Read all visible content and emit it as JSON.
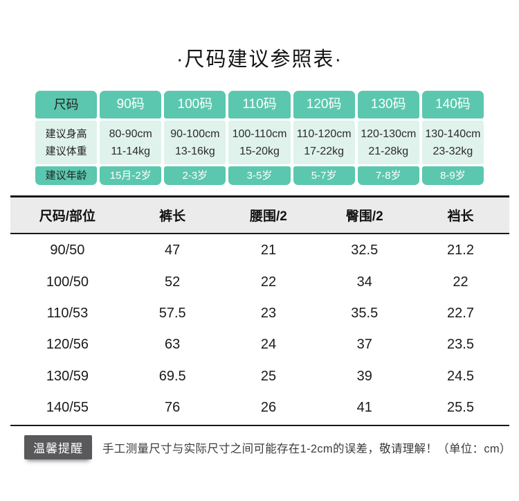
{
  "page": {
    "title": "·尺码建议参照表·"
  },
  "colors": {
    "teal": "#5bc7ae",
    "mint": "#dff2ec",
    "header_gray": "#ebebeb",
    "badge_gray": "#59595b"
  },
  "size_table": {
    "corner_label": "尺码",
    "row_labels": {
      "height": "建议身高",
      "weight": "建议体重",
      "age": "建议年龄"
    },
    "columns": [
      {
        "size": "90码",
        "height": "80-90cm",
        "weight": "11-14kg",
        "age": "15月-2岁"
      },
      {
        "size": "100码",
        "height": "90-100cm",
        "weight": "13-16kg",
        "age": "2-3岁"
      },
      {
        "size": "110码",
        "height": "100-110cm",
        "weight": "15-20kg",
        "age": "3-5岁"
      },
      {
        "size": "120码",
        "height": "110-120cm",
        "weight": "17-22kg",
        "age": "5-7岁"
      },
      {
        "size": "130码",
        "height": "120-130cm",
        "weight": "21-28kg",
        "age": "7-8岁"
      },
      {
        "size": "140码",
        "height": "130-140cm",
        "weight": "23-32kg",
        "age": "8-9岁"
      }
    ]
  },
  "measure_table": {
    "headers": [
      "尺码/部位",
      "裤长",
      "腰围/2",
      "臀围/2",
      "裆长"
    ],
    "rows": [
      [
        "90/50",
        "47",
        "21",
        "32.5",
        "21.2"
      ],
      [
        "100/50",
        "52",
        "22",
        "34",
        "22"
      ],
      [
        "110/53",
        "57.5",
        "23",
        "35.5",
        "22.7"
      ],
      [
        "120/56",
        "63",
        "24",
        "37",
        "23.5"
      ],
      [
        "130/59",
        "69.5",
        "25",
        "39",
        "24.5"
      ],
      [
        "140/55",
        "76",
        "26",
        "41",
        "25.5"
      ]
    ]
  },
  "footer": {
    "badge": "温馨提醒",
    "note": "手工测量尺寸与实际尺寸之间可能存在1-2cm的误差，敬请理解！（单位：cm）"
  }
}
